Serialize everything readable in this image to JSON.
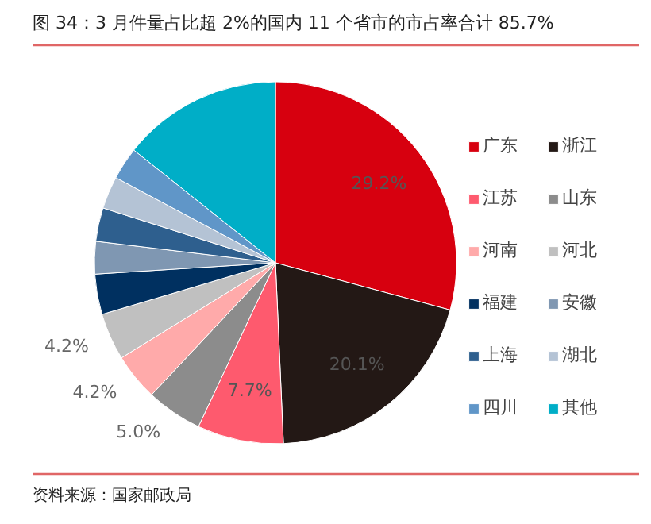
{
  "chart_data": {
    "type": "pie",
    "title": "图 34：3 月件量占比超 2%的国内 11 个省市的市占率合计 85.7%",
    "categories": [
      "广东",
      "浙江",
      "江苏",
      "山东",
      "河南",
      "河北",
      "福建",
      "安徽",
      "上海",
      "湖北",
      "四川",
      "其他"
    ],
    "values": [
      29.2,
      20.1,
      7.7,
      5.0,
      4.2,
      4.2,
      3.6,
      2.9,
      3.0,
      2.9,
      2.9,
      14.3
    ],
    "colors": [
      "#d7000f",
      "#231815",
      "#fe5a6e",
      "#8c8c8c",
      "#ffaaaa",
      "#c0c0c0",
      "#003060",
      "#7f97b2",
      "#2e5f8e",
      "#b4c3d5",
      "#6096c8",
      "#00aec7"
    ],
    "value_labels": [
      "29.2%",
      "20.1%",
      "7.7%",
      "5.0%",
      "4.2%",
      "4.2%",
      null,
      null,
      null,
      null,
      null,
      null
    ],
    "legend": "right",
    "annotations": [
      "资料来源：国家邮政局"
    ]
  }
}
